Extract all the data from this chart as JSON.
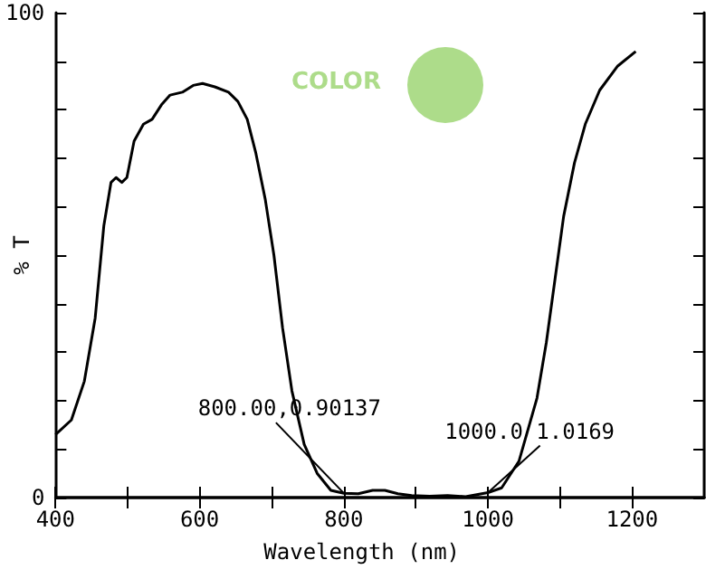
{
  "chart_data": {
    "type": "line",
    "xlabel": "Wavelength (nm)",
    "ylabel": "% T",
    "x": [
      400,
      422,
      440,
      455,
      467,
      477,
      484,
      492,
      499,
      509,
      522,
      534,
      547,
      559,
      576,
      591,
      604,
      621,
      640,
      653,
      666,
      678,
      691,
      703,
      715,
      728,
      745,
      763,
      782,
      800,
      820,
      840,
      857,
      875,
      894,
      919,
      944,
      969,
      1000,
      1019,
      1043,
      1068,
      1081,
      1093,
      1105,
      1120,
      1135,
      1155,
      1180,
      1205
    ],
    "series": [
      {
        "color": "#000000",
        "values": [
          13,
          16,
          24,
          37,
          56,
          65,
          66,
          65,
          66,
          73.5,
          77,
          78,
          81,
          83,
          83.6,
          85,
          85.4,
          84.7,
          83.6,
          81.7,
          78,
          71,
          61.5,
          50,
          35,
          22,
          11,
          5,
          1.5,
          0.90137,
          0.8,
          1.5,
          1.5,
          0.8,
          0.4,
          0.3,
          0.4,
          0.2,
          1.0169,
          2,
          7.5,
          20.5,
          32,
          45,
          58,
          69,
          77,
          84,
          89,
          92
        ]
      }
    ],
    "xlim": [
      400,
      1300
    ],
    "xticks": [
      400,
      {
        "value": 500,
        "label": null
      },
      600,
      {
        "value": 700,
        "label": null
      },
      800,
      {
        "value": 900,
        "label": null
      },
      1000,
      {
        "value": 1100,
        "label": null
      },
      1200
    ],
    "ylim": [
      0,
      100
    ],
    "yticks": [
      0,
      {
        "value": 10,
        "label": null
      },
      {
        "value": 20,
        "label": null
      },
      {
        "value": 30,
        "label": null
      },
      {
        "value": 40,
        "label": null
      },
      {
        "value": 50,
        "label": null
      },
      {
        "value": 60,
        "label": null
      },
      {
        "value": 70,
        "label": null
      },
      {
        "value": 80,
        "label": null
      },
      {
        "value": 90,
        "label": null
      },
      100
    ],
    "annotations": [
      {
        "text": "800.00,0.90137",
        "x": 800,
        "y": 0.90137
      },
      {
        "text": "1000.0 1.0169",
        "x": 1000,
        "y": 1.0169
      },
      "COLOR"
    ],
    "marker": "none",
    "line_style": "solid"
  }
}
